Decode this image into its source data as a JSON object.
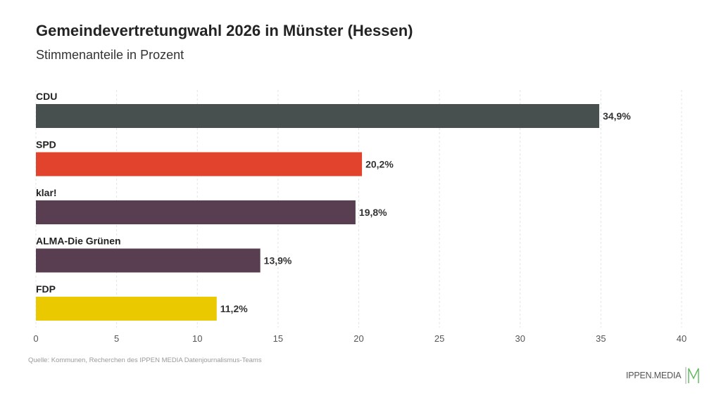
{
  "header": {
    "title": "Gemeindevertretungwahl 2026 in Münster (Hessen)",
    "subtitle": "Stimmenanteile in Prozent"
  },
  "chart_data": {
    "type": "bar",
    "orientation": "horizontal",
    "title": "Gemeindevertretungwahl 2026 in Münster (Hessen)",
    "subtitle": "Stimmenanteile in Prozent",
    "xlabel": "",
    "ylabel": "",
    "xlim": [
      0,
      40
    ],
    "grid": true,
    "categories": [
      "CDU",
      "SPD",
      "klar!",
      "ALMA-Die Grünen",
      "FDP"
    ],
    "values": [
      34.9,
      20.2,
      19.8,
      13.9,
      11.2
    ],
    "value_labels": [
      "34,9%",
      "20,2%",
      "19,8%",
      "13,9%",
      "11,2%"
    ],
    "colors": [
      "#474f4f",
      "#e2432c",
      "#593d50",
      "#593d50",
      "#eac900"
    ],
    "ticks": [
      0,
      5,
      10,
      15,
      20,
      25,
      30,
      35,
      40
    ],
    "tick_labels": [
      "0",
      "5",
      "10",
      "15",
      "20",
      "25",
      "30",
      "35",
      "40"
    ]
  },
  "footer": {
    "source": "Quelle: Kommunen, Recherchen des IPPEN MEDIA Datenjournalismus-Teams",
    "logo_text": "IPPEN.MEDIA",
    "logo_accent": "#5cb85c"
  }
}
